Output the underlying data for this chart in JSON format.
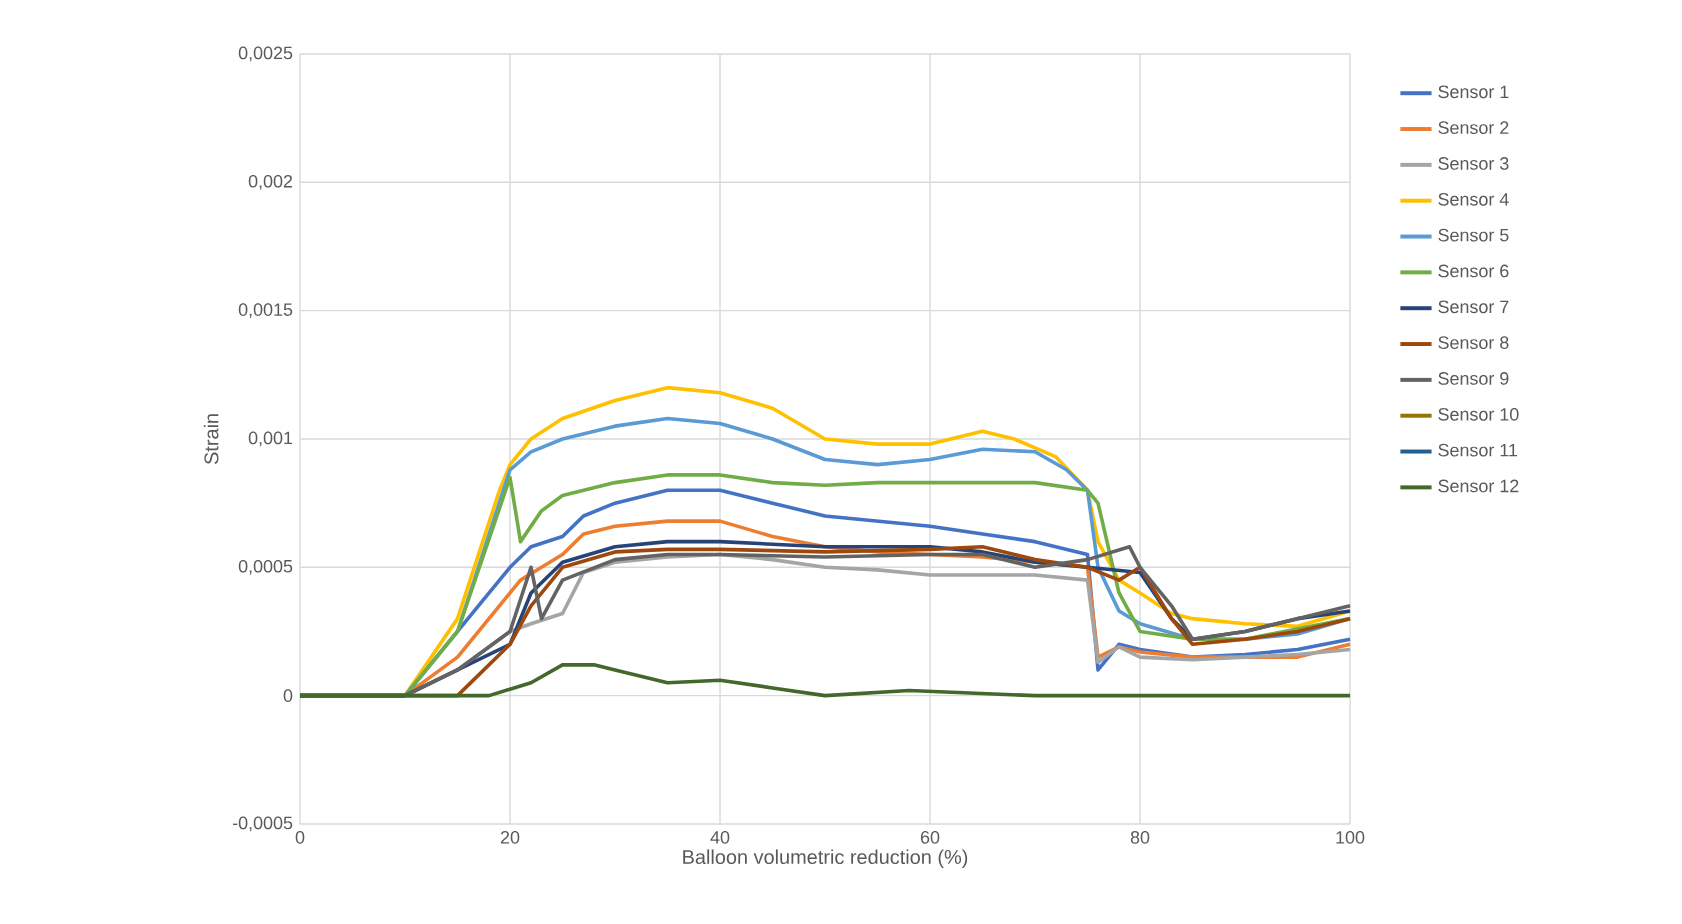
{
  "chart_data": {
    "type": "line",
    "xlabel": "Balloon volumetric reduction (%)",
    "ylabel": "Strain",
    "xlim": [
      0,
      100
    ],
    "xticks": [
      0,
      20,
      40,
      60,
      80,
      100
    ],
    "ylim": [
      -0.0005,
      0.0025
    ],
    "yticks": [
      {
        "value": -0.0005,
        "label": "-0,0005"
      },
      {
        "value": 0,
        "label": "0"
      },
      {
        "value": 0.0005,
        "label": "0,0005"
      },
      {
        "value": 0.001,
        "label": "0,001"
      },
      {
        "value": 0.0015,
        "label": "0,0015"
      },
      {
        "value": 0.002,
        "label": "0,002"
      },
      {
        "value": 0.0025,
        "label": "0,0025"
      }
    ],
    "grid": true,
    "legend": "right",
    "marker": "none",
    "line_style": "solid",
    "series": [
      {
        "name": "Sensor 1",
        "color": "#4472c4",
        "x": [
          0,
          10,
          15,
          19,
          20,
          22,
          25,
          27,
          30,
          35,
          40,
          45,
          50,
          55,
          60,
          65,
          70,
          75,
          76,
          78,
          80,
          85,
          90,
          95,
          100
        ],
        "values": [
          0,
          0,
          0.00025,
          0.00045,
          0.0005,
          0.00058,
          0.00062,
          0.0007,
          0.00075,
          0.0008,
          0.0008,
          0.00075,
          0.0007,
          0.00068,
          0.00066,
          0.00063,
          0.0006,
          0.00055,
          0.0001,
          0.0002,
          0.00018,
          0.00015,
          0.00016,
          0.00018,
          0.00022
        ]
      },
      {
        "name": "Sensor 2",
        "color": "#ed7d31",
        "x": [
          0,
          10,
          15,
          20,
          21,
          23,
          25,
          27,
          30,
          35,
          40,
          45,
          50,
          55,
          60,
          65,
          70,
          75,
          76,
          78,
          80,
          85,
          90,
          95,
          100
        ],
        "values": [
          0,
          0,
          0.00015,
          0.0004,
          0.00045,
          0.0005,
          0.00055,
          0.00063,
          0.00066,
          0.00068,
          0.00068,
          0.00062,
          0.00058,
          0.00056,
          0.00055,
          0.00054,
          0.00052,
          0.0005,
          0.00015,
          0.00019,
          0.00017,
          0.00015,
          0.00015,
          0.00015,
          0.0002
        ]
      },
      {
        "name": "Sensor 3",
        "color": "#a5a5a5",
        "x": [
          0,
          10,
          15,
          20,
          22,
          25,
          27,
          30,
          35,
          40,
          45,
          50,
          55,
          60,
          65,
          70,
          75,
          76,
          78,
          80,
          85,
          90,
          95,
          100
        ],
        "values": [
          0,
          0,
          0.0001,
          0.00025,
          0.00028,
          0.00032,
          0.00048,
          0.00052,
          0.00054,
          0.00055,
          0.00053,
          0.0005,
          0.00049,
          0.00047,
          0.00047,
          0.00047,
          0.00045,
          0.00013,
          0.00019,
          0.00015,
          0.00014,
          0.00015,
          0.00016,
          0.00018
        ]
      },
      {
        "name": "Sensor 4",
        "color": "#ffc000",
        "x": [
          0,
          10,
          15,
          19,
          20,
          22,
          25,
          30,
          35,
          40,
          45,
          50,
          55,
          60,
          65,
          68,
          72,
          75,
          76,
          78,
          80,
          83,
          85,
          90,
          95,
          100
        ],
        "values": [
          0,
          0,
          0.0003,
          0.0008,
          0.0009,
          0.001,
          0.00108,
          0.00115,
          0.0012,
          0.00118,
          0.00112,
          0.001,
          0.00098,
          0.00098,
          0.00103,
          0.001,
          0.00093,
          0.0008,
          0.0006,
          0.00045,
          0.0004,
          0.00032,
          0.0003,
          0.00028,
          0.00027,
          0.00033
        ]
      },
      {
        "name": "Sensor 5",
        "color": "#5b9bd5",
        "x": [
          0,
          10,
          15,
          20,
          22,
          25,
          30,
          35,
          40,
          45,
          50,
          55,
          60,
          65,
          70,
          73,
          75,
          76,
          78,
          80,
          85,
          90,
          95,
          100
        ],
        "values": [
          0,
          0,
          0.00025,
          0.00088,
          0.00095,
          0.001,
          0.00105,
          0.00108,
          0.00106,
          0.001,
          0.00092,
          0.0009,
          0.00092,
          0.00096,
          0.00095,
          0.00088,
          0.0008,
          0.0005,
          0.00033,
          0.00028,
          0.00022,
          0.00022,
          0.00024,
          0.0003
        ]
      },
      {
        "name": "Sensor 6",
        "color": "#70ad47",
        "x": [
          0,
          10,
          15,
          20,
          21,
          23,
          25,
          30,
          35,
          40,
          45,
          50,
          55,
          60,
          65,
          70,
          75,
          76,
          78,
          80,
          85,
          90,
          100
        ],
        "values": [
          0,
          0,
          0.00025,
          0.00085,
          0.0006,
          0.00072,
          0.00078,
          0.00083,
          0.00086,
          0.00086,
          0.00083,
          0.00082,
          0.00083,
          0.00083,
          0.00083,
          0.00083,
          0.0008,
          0.00075,
          0.0004,
          0.00025,
          0.00022,
          0.00022,
          0.0003
        ]
      },
      {
        "name": "Sensor 7",
        "color": "#264478",
        "x": [
          0,
          10,
          15,
          20,
          22,
          25,
          30,
          35,
          40,
          50,
          60,
          65,
          70,
          75,
          80,
          83,
          85,
          90,
          95,
          100
        ],
        "values": [
          0,
          0,
          0.0001,
          0.0002,
          0.0004,
          0.00052,
          0.00058,
          0.0006,
          0.0006,
          0.00058,
          0.00058,
          0.00056,
          0.00052,
          0.0005,
          0.00048,
          0.0003,
          0.00022,
          0.00025,
          0.0003,
          0.00033
        ]
      },
      {
        "name": "Sensor 8",
        "color": "#9e480e",
        "x": [
          0,
          10,
          15,
          20,
          22,
          25,
          30,
          35,
          40,
          50,
          60,
          65,
          70,
          75,
          78,
          80,
          83,
          85,
          90,
          95,
          100
        ],
        "values": [
          0,
          0,
          0,
          0.0002,
          0.00035,
          0.0005,
          0.00056,
          0.00057,
          0.00057,
          0.00056,
          0.00057,
          0.00058,
          0.00053,
          0.0005,
          0.00045,
          0.0005,
          0.0003,
          0.0002,
          0.00022,
          0.00025,
          0.0003
        ]
      },
      {
        "name": "Sensor 9",
        "color": "#636363",
        "x": [
          0,
          10,
          15,
          20,
          22,
          23,
          25,
          30,
          35,
          40,
          50,
          60,
          65,
          70,
          75,
          79,
          80,
          83,
          85,
          90,
          95,
          100
        ],
        "values": [
          0,
          0,
          0.0001,
          0.00025,
          0.0005,
          0.0003,
          0.00045,
          0.00053,
          0.00055,
          0.00055,
          0.00054,
          0.00055,
          0.00055,
          0.0005,
          0.00053,
          0.00058,
          0.0005,
          0.00035,
          0.00022,
          0.00025,
          0.0003,
          0.00035
        ]
      },
      {
        "name": "Sensor 10",
        "color": "#997300"
      },
      {
        "name": "Sensor 11",
        "color": "#255e91"
      },
      {
        "name": "Sensor 12",
        "color": "#43682b",
        "x": [
          0,
          18,
          22,
          25,
          28,
          30,
          35,
          40,
          45,
          50,
          58,
          70,
          100
        ],
        "values": [
          0,
          0,
          5e-05,
          0.00012,
          0.00012,
          0.0001,
          5e-05,
          6e-05,
          3e-05,
          0,
          2e-05,
          0,
          0
        ]
      }
    ]
  }
}
